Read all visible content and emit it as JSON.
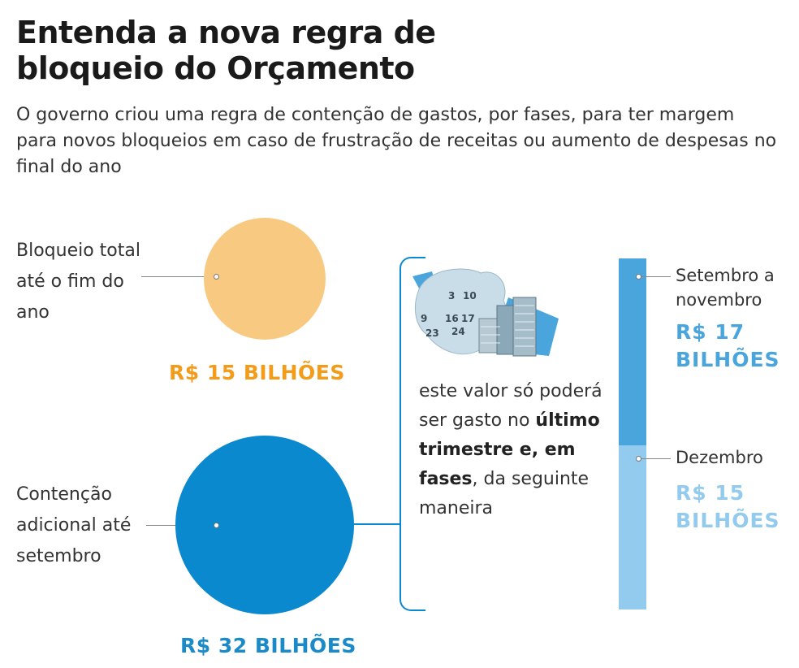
{
  "header": {
    "title": "Entenda a nova regra de bloqueio do Orçamento",
    "subtitle": "O governo criou uma regra de contenção de gastos, por fases, para ter margem para novos bloqueios em caso de frustração de receitas ou aumento de despesas no final do ano"
  },
  "blocks": {
    "total": {
      "label": "Bloqueio total até o fim do ano",
      "amount": "R$ 15 BILHÕES",
      "value_billion": 15,
      "color": "#f8c981",
      "amount_color": "#f39c1a"
    },
    "additional": {
      "label": "Contenção adicional até setembro",
      "amount": "R$ 32 BILHÕES",
      "value_billion": 32,
      "color": "#0a89cf",
      "amount_color": "#1b8ac8"
    }
  },
  "description": {
    "part1": "este valor só poderá ser gasto no ",
    "bold": "último trimestre e, em fases",
    "part2": ", da seguinte maneira"
  },
  "calendar_numbers": [
    "3",
    "10",
    "9",
    "16",
    "17",
    "23",
    "24"
  ],
  "phases": [
    {
      "label": "Setembro a novembro",
      "amount": "R$ 17 BILHÕES",
      "value_billion": 17,
      "color": "#4aa5dd"
    },
    {
      "label": "Dezembro",
      "amount": "R$ 15 BILHÕES",
      "value_billion": 15,
      "color": "#93cbee"
    }
  ]
}
